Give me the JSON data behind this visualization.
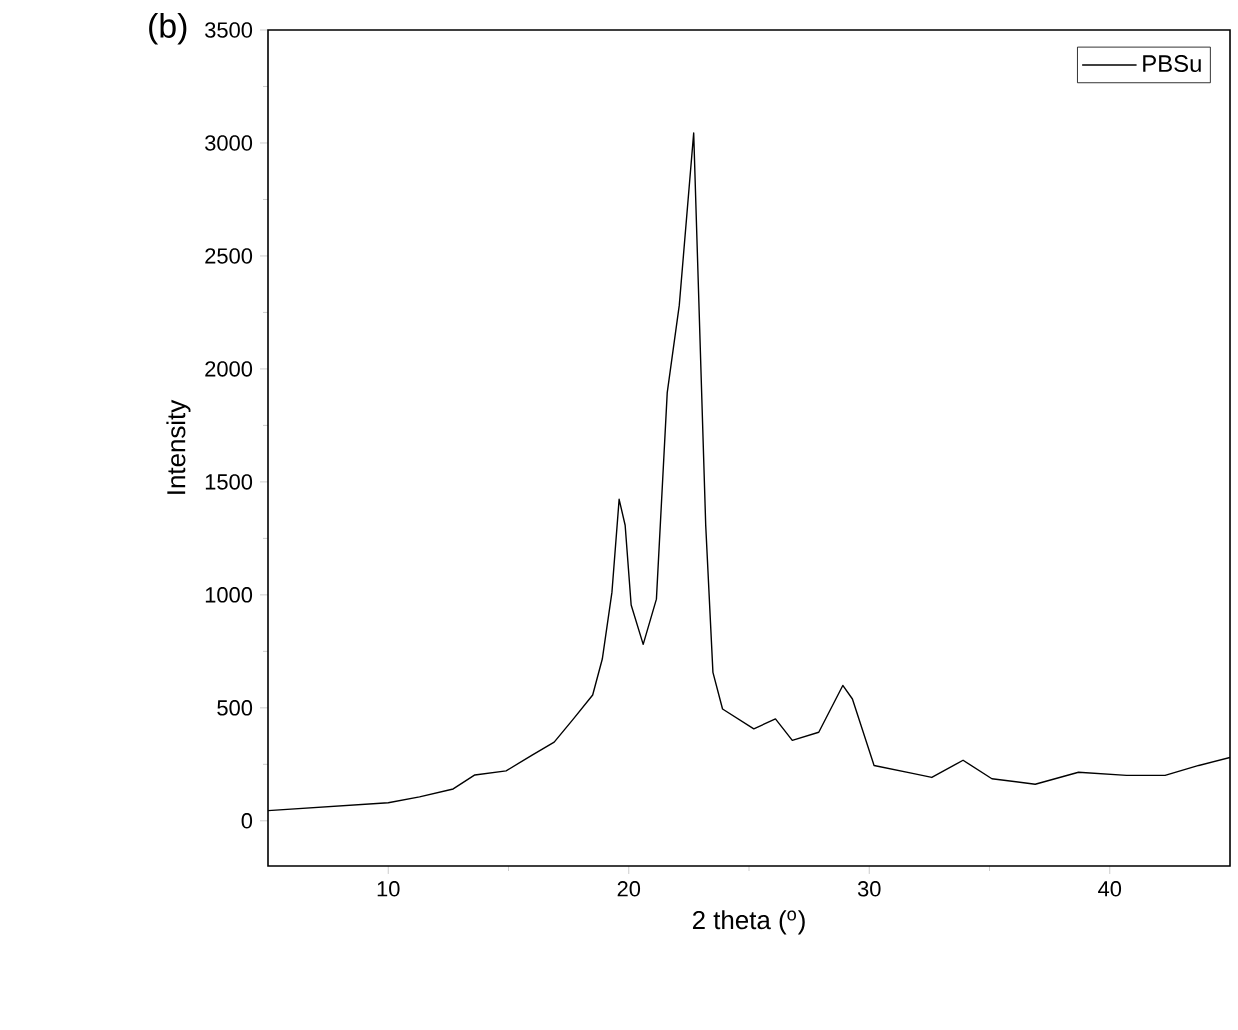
{
  "chart_data": {
    "type": "line",
    "annotations": [
      "(b)"
    ],
    "xlabel": "2 theta ($^{o}$)",
    "ylabel": "Intensity",
    "xlim": [
      5,
      45
    ],
    "ylim": [
      -200,
      3500
    ],
    "xticks": [
      10,
      20,
      30,
      40
    ],
    "yticks": [
      0,
      500,
      1000,
      1500,
      2000,
      2500,
      3000,
      3500
    ],
    "legend": "top right",
    "x": [
      5.0,
      10.0,
      11.3,
      12.7,
      13.6,
      14.9,
      16.0,
      16.9,
      17.7,
      18.5,
      18.9,
      19.3,
      19.6,
      19.85,
      20.1,
      20.6,
      21.15,
      21.6,
      22.1,
      22.7,
      23.2,
      23.5,
      23.9,
      25.2,
      26.1,
      26.8,
      27.9,
      28.9,
      29.3,
      30.2,
      31.8,
      32.6,
      33.9,
      35.1,
      36.9,
      38.7,
      40.7,
      42.3,
      43.7,
      45.0
    ],
    "series": [
      {
        "name": "PBSu",
        "color": "#000000",
        "values": [
          45,
          80,
          106,
          141,
          203,
          221,
          292,
          348,
          451,
          557,
          716,
          1011,
          1423,
          1308,
          955,
          781,
          981,
          1895,
          2281,
          3044,
          1308,
          657,
          495,
          407,
          451,
          356,
          392,
          599,
          539,
          245,
          210,
          192,
          268,
          186,
          162,
          215,
          201,
          201,
          245,
          280
        ]
      }
    ]
  }
}
